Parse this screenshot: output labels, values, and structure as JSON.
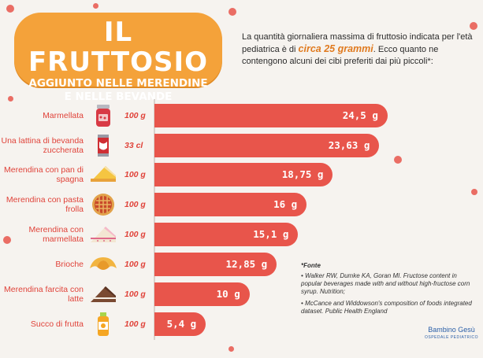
{
  "title": {
    "main": "IL FRUTTOSIO",
    "line1": "AGGIUNTO NELLE MERENDINE",
    "line2": "E NELLE BEVANDE"
  },
  "intro": {
    "part1": "La quantità giornaliera massima di fruttosio indicata per l'età pediatrica è di ",
    "highlight": "circa 25 grammi",
    "part2": ". Ecco quanto ne contengono alcuni dei cibi preferiti dai più piccoli*:"
  },
  "chart_data": {
    "type": "bar",
    "orientation": "horizontal",
    "categories": [
      "Marmellata",
      "Una lattina di bevanda zuccherata",
      "Merendina con pan di spagna",
      "Merendina con pasta frolla",
      "Merendina con marmellata",
      "Brioche",
      "Merendina farcita con latte",
      "Succo di frutta"
    ],
    "quantities": [
      "100 g",
      "33 cl",
      "100 g",
      "100 g",
      "100 g",
      "100 g",
      "100 g",
      "100 g"
    ],
    "values": [
      24.5,
      23.63,
      18.75,
      16,
      15.1,
      12.85,
      10,
      5.4
    ],
    "value_labels": [
      "24,5 g",
      "23,63 g",
      "18,75 g",
      "16 g",
      "15,1 g",
      "12,85 g",
      "10 g",
      "5,4 g"
    ],
    "xlim": [
      0,
      26
    ],
    "grid": false,
    "bar_color": "#e8554b"
  },
  "icons": [
    "jam-jar-icon",
    "soda-can-icon",
    "sponge-cake-icon",
    "tart-icon",
    "jam-cake-icon",
    "croissant-icon",
    "chocolate-cake-icon",
    "juice-bottle-icon"
  ],
  "sources": {
    "title": "*Fonte",
    "items": [
      "• Walker RW, Dumke KA, Goran MI. Fructose content in popular beverages made with and without high-fructose corn syrup. Nutrition;",
      "• McCance and Widdowson's composition of foods integrated dataset. Public Health England"
    ]
  },
  "brand": {
    "name": "Bambino Gesù",
    "sub": "OSPEDALE PEDIATRICO"
  },
  "colors": {
    "accent_red": "#e8554b",
    "label_red": "#e0433a",
    "title_orange": "#f4a23a",
    "highlight_orange": "#e07a1f",
    "brand_blue": "#2b5fa8"
  }
}
